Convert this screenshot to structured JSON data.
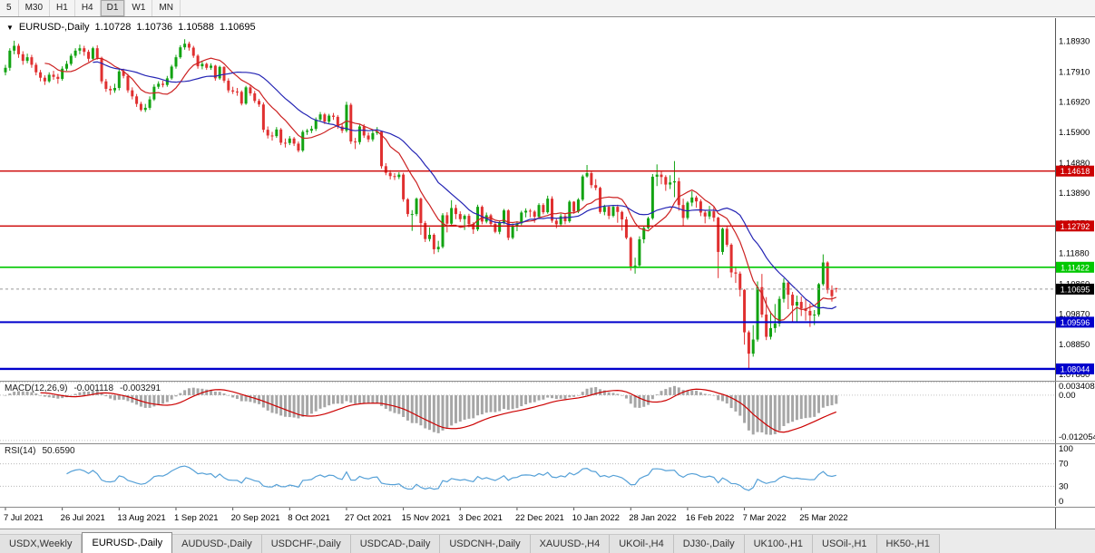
{
  "colors": {
    "bull": "#12a312",
    "bear": "#e03030",
    "ma_fast": "#cc2222",
    "ma_slow": "#2424b4",
    "macd_hist": "#a6a6a6",
    "macd_signal": "#cc0000",
    "rsi_line": "#55a0d7",
    "axis_text": "#000000",
    "hline_red": "#cc0000",
    "hline_green": "#00c800",
    "hline_blue": "#0000cc",
    "current_badge": "#000000"
  },
  "toolbar": {
    "timeframes": [
      "5",
      "M30",
      "H1",
      "H4",
      "D1",
      "W1",
      "MN"
    ],
    "active": "D1"
  },
  "legend": {
    "icon": "▼",
    "symbol": "EURUSD-,Daily",
    "open": "1.10728",
    "high": "1.10736",
    "low": "1.10588",
    "close": "1.10695"
  },
  "macd_label": {
    "name": "MACD(12,26,9)",
    "value_main": "-0.001118",
    "value_signal": "-0.003291"
  },
  "rsi_label": {
    "name": "RSI(14)",
    "value": "50.6590"
  },
  "tabs": {
    "active_index": 1,
    "items": [
      "USDX,Weekly",
      "EURUSD-,Daily",
      "AUDUSD-,Daily",
      "USDCHF-,Daily",
      "USDCAD-,Daily",
      "USDCNH-,Daily",
      "XAUUSD-,H4",
      "UKOil-,H4",
      "DJ30-,Daily",
      "UK100-,H1",
      "USOil-,H1",
      "HK50-,H1"
    ]
  },
  "chart_data": {
    "type": "candlestick",
    "title": "EURUSD-,Daily",
    "layout": {
      "x0": 6,
      "dx": 4.82,
      "axis_x": 1163,
      "grid": false,
      "legend_position": "top-left"
    },
    "price_range": {
      "top": 1.197,
      "bottom": 1.0765
    },
    "y_ticks": [
      "1.18930",
      "1.17910",
      "1.16920",
      "1.15900",
      "1.14880",
      "1.13890",
      "1.12870",
      "1.11880",
      "1.10860",
      "1.09870",
      "1.08850",
      "1.07860"
    ],
    "x_labels": [
      "7 Jul 2021",
      "26 Jul 2021",
      "13 Aug 2021",
      "1 Sep 2021",
      "20 Sep 2021",
      "8 Oct 2021",
      "27 Oct 2021",
      "15 Nov 2021",
      "3 Dec 2021",
      "22 Dec 2021",
      "10 Jan 2022",
      "28 Jan 2022",
      "16 Feb 2022",
      "7 Mar 2022",
      "25 Mar 2022"
    ],
    "x_label_indices": [
      0,
      13,
      26,
      39,
      52,
      65,
      78,
      91,
      104,
      117,
      130,
      143,
      156,
      169,
      182
    ],
    "hlines": [
      {
        "price": 1.14618,
        "label": "1.14618",
        "color": "#cc0000",
        "width": 1.4
      },
      {
        "price": 1.12792,
        "label": "1.12792",
        "color": "#cc0000",
        "width": 1.4
      },
      {
        "price": 1.11422,
        "label": "1.11422",
        "color": "#00c800",
        "width": 1.6
      },
      {
        "price": 1.09596,
        "label": "1.09596",
        "color": "#0000cc",
        "width": 2
      },
      {
        "price": 1.08044,
        "label": "1.08044",
        "color": "#0000cc",
        "width": 2.4
      }
    ],
    "current_price": {
      "price": 1.10695,
      "label": "1.10695",
      "badge_color": "#000000"
    },
    "indicators": [
      {
        "name": "MACD",
        "label": "MACD(12,26,9)",
        "values": "-0.001118 -0.003291",
        "range": {
          "max": 0.0036,
          "min": -0.0128
        },
        "axis_labels": [
          {
            "text": "0.003408",
            "value": 0.003408
          },
          {
            "text": "0.00",
            "value": 0
          },
          {
            "text": "-0.012054",
            "value": -0.012054
          }
        ]
      },
      {
        "name": "RSI",
        "label": "RSI(14)",
        "value": "50.6590",
        "axis_labels": [
          {
            "text": "100",
            "value": 100,
            "dotted": false
          },
          {
            "text": "70",
            "value": 70,
            "dotted": true
          },
          {
            "text": "30",
            "value": 30,
            "dotted": true
          },
          {
            "text": "0",
            "value": 0,
            "dotted": false
          }
        ]
      }
    ],
    "candles": [
      [
        1.179,
        1.1815,
        1.178,
        1.1805
      ],
      [
        1.1805,
        1.187,
        1.1795,
        1.1862
      ],
      [
        1.1862,
        1.1895,
        1.185,
        1.1878
      ],
      [
        1.1878,
        1.1885,
        1.1838,
        1.185
      ],
      [
        1.185,
        1.186,
        1.1815,
        1.1828
      ],
      [
        1.1828,
        1.1852,
        1.182,
        1.184
      ],
      [
        1.184,
        1.1848,
        1.1805,
        1.1815
      ],
      [
        1.1815,
        1.1822,
        1.178,
        1.179
      ],
      [
        1.179,
        1.1798,
        1.176,
        1.1772
      ],
      [
        1.1772,
        1.178,
        1.1748,
        1.176
      ],
      [
        1.176,
        1.179,
        1.1755,
        1.1782
      ],
      [
        1.1782,
        1.1795,
        1.1765,
        1.1775
      ],
      [
        1.1775,
        1.1785,
        1.1752,
        1.1768
      ],
      [
        1.1768,
        1.181,
        1.1762,
        1.1802
      ],
      [
        1.1802,
        1.1828,
        1.1795,
        1.1818
      ],
      [
        1.1818,
        1.1852,
        1.1812,
        1.1845
      ],
      [
        1.1845,
        1.187,
        1.1838,
        1.1862
      ],
      [
        1.1862,
        1.1882,
        1.185,
        1.187
      ],
      [
        1.187,
        1.1878,
        1.1845,
        1.1858
      ],
      [
        1.1858,
        1.1865,
        1.1825,
        1.1835
      ],
      [
        1.1835,
        1.1875,
        1.183,
        1.187
      ],
      [
        1.187,
        1.188,
        1.1832,
        1.1838
      ],
      [
        1.1838,
        1.1842,
        1.1752,
        1.176
      ],
      [
        1.176,
        1.1768,
        1.1725,
        1.1735
      ],
      [
        1.1735,
        1.1745,
        1.1715,
        1.173
      ],
      [
        1.173,
        1.1752,
        1.1722,
        1.1738
      ],
      [
        1.1738,
        1.18,
        1.173,
        1.1793
      ],
      [
        1.1793,
        1.1802,
        1.177,
        1.1778
      ],
      [
        1.1778,
        1.1785,
        1.1722,
        1.173
      ],
      [
        1.173,
        1.174,
        1.17,
        1.171
      ],
      [
        1.171,
        1.1718,
        1.1675,
        1.1685
      ],
      [
        1.1685,
        1.1692,
        1.166,
        1.1665
      ],
      [
        1.1665,
        1.1685,
        1.1658,
        1.1672
      ],
      [
        1.1672,
        1.171,
        1.1665,
        1.17
      ],
      [
        1.17,
        1.175,
        1.1695,
        1.1742
      ],
      [
        1.1742,
        1.176,
        1.1735,
        1.1752
      ],
      [
        1.1752,
        1.1762,
        1.174,
        1.1748
      ],
      [
        1.1748,
        1.1778,
        1.1742,
        1.177
      ],
      [
        1.177,
        1.1815,
        1.1765,
        1.1809
      ],
      [
        1.1809,
        1.1848,
        1.1802,
        1.184
      ],
      [
        1.184,
        1.188,
        1.1835,
        1.1873
      ],
      [
        1.1873,
        1.19,
        1.1865,
        1.1885
      ],
      [
        1.1885,
        1.1892,
        1.1862,
        1.1872
      ],
      [
        1.1872,
        1.1878,
        1.1838,
        1.1845
      ],
      [
        1.1845,
        1.185,
        1.1802,
        1.181
      ],
      [
        1.181,
        1.1828,
        1.18,
        1.1818
      ],
      [
        1.1818,
        1.1822,
        1.1798,
        1.1805
      ],
      [
        1.1805,
        1.182,
        1.1798,
        1.1812
      ],
      [
        1.1812,
        1.1815,
        1.1762,
        1.177
      ],
      [
        1.177,
        1.1812,
        1.1765,
        1.1808
      ],
      [
        1.1808,
        1.181,
        1.1755,
        1.1762
      ],
      [
        1.1762,
        1.177,
        1.1722,
        1.173
      ],
      [
        1.173,
        1.1742,
        1.1718,
        1.1726
      ],
      [
        1.1726,
        1.1738,
        1.1712,
        1.1725
      ],
      [
        1.1725,
        1.173,
        1.168,
        1.1686
      ],
      [
        1.1686,
        1.1745,
        1.1682,
        1.174
      ],
      [
        1.174,
        1.1748,
        1.1712,
        1.172
      ],
      [
        1.172,
        1.1728,
        1.1688,
        1.1695
      ],
      [
        1.1695,
        1.1702,
        1.1675,
        1.1683
      ],
      [
        1.1683,
        1.169,
        1.159,
        1.1599
      ],
      [
        1.1599,
        1.161,
        1.157,
        1.158
      ],
      [
        1.158,
        1.1592,
        1.1563,
        1.1578
      ],
      [
        1.1578,
        1.1608,
        1.1572,
        1.16
      ],
      [
        1.16,
        1.1605,
        1.1548,
        1.1556
      ],
      [
        1.1556,
        1.157,
        1.154,
        1.1555
      ],
      [
        1.1555,
        1.1578,
        1.1548,
        1.157
      ],
      [
        1.157,
        1.1575,
        1.1545,
        1.1553
      ],
      [
        1.1553,
        1.156,
        1.1524,
        1.153
      ],
      [
        1.153,
        1.1598,
        1.1525,
        1.1592
      ],
      [
        1.1592,
        1.1602,
        1.1582,
        1.1596
      ],
      [
        1.1596,
        1.1612,
        1.1588,
        1.1602
      ],
      [
        1.1602,
        1.164,
        1.1595,
        1.1633
      ],
      [
        1.1633,
        1.1658,
        1.1628,
        1.165
      ],
      [
        1.165,
        1.1655,
        1.1618,
        1.1626
      ],
      [
        1.1626,
        1.1652,
        1.162,
        1.1646
      ],
      [
        1.1646,
        1.1655,
        1.1632,
        1.1642
      ],
      [
        1.1642,
        1.1648,
        1.1602,
        1.161
      ],
      [
        1.161,
        1.162,
        1.1588,
        1.1596
      ],
      [
        1.1596,
        1.1692,
        1.159,
        1.1682
      ],
      [
        1.1682,
        1.1688,
        1.1552,
        1.156
      ],
      [
        1.156,
        1.1572,
        1.1535,
        1.1558
      ],
      [
        1.1558,
        1.1616,
        1.155,
        1.161
      ],
      [
        1.161,
        1.1618,
        1.1572,
        1.158
      ],
      [
        1.158,
        1.159,
        1.1558,
        1.1567
      ],
      [
        1.1567,
        1.1598,
        1.156,
        1.1588
      ],
      [
        1.1588,
        1.1608,
        1.1582,
        1.1593
      ],
      [
        1.1593,
        1.1595,
        1.147,
        1.1478
      ],
      [
        1.1478,
        1.1488,
        1.1448,
        1.1456
      ],
      [
        1.1456,
        1.1465,
        1.1434,
        1.1445
      ],
      [
        1.1445,
        1.1455,
        1.1432,
        1.1442
      ],
      [
        1.1442,
        1.1458,
        1.1435,
        1.145
      ],
      [
        1.145,
        1.1456,
        1.136,
        1.1368
      ],
      [
        1.1368,
        1.1372,
        1.131,
        1.1319
      ],
      [
        1.1319,
        1.1332,
        1.1263,
        1.1319
      ],
      [
        1.1319,
        1.1374,
        1.1312,
        1.137
      ],
      [
        1.137,
        1.1374,
        1.125,
        1.1289
      ],
      [
        1.1289,
        1.1296,
        1.1226,
        1.1236
      ],
      [
        1.1236,
        1.1275,
        1.1228,
        1.125
      ],
      [
        1.125,
        1.1255,
        1.1186,
        1.1202
      ],
      [
        1.1202,
        1.123,
        1.1192,
        1.121
      ],
      [
        1.121,
        1.1322,
        1.1205,
        1.1315
      ],
      [
        1.1315,
        1.1325,
        1.1258,
        1.1287
      ],
      [
        1.1287,
        1.1365,
        1.128,
        1.1339
      ],
      [
        1.1339,
        1.135,
        1.1302,
        1.1319
      ],
      [
        1.1319,
        1.1328,
        1.1293,
        1.1302
      ],
      [
        1.1302,
        1.1318,
        1.1266,
        1.1313
      ],
      [
        1.1313,
        1.132,
        1.1275,
        1.1286
      ],
      [
        1.1286,
        1.1292,
        1.1253,
        1.1268
      ],
      [
        1.1268,
        1.135,
        1.1262,
        1.1343
      ],
      [
        1.1343,
        1.1348,
        1.1285,
        1.1294
      ],
      [
        1.1294,
        1.1324,
        1.1288,
        1.1315
      ],
      [
        1.1315,
        1.132,
        1.128,
        1.1286
      ],
      [
        1.1286,
        1.1295,
        1.1255,
        1.126
      ],
      [
        1.126,
        1.1298,
        1.1252,
        1.1291
      ],
      [
        1.1291,
        1.1336,
        1.1285,
        1.1331
      ],
      [
        1.1331,
        1.1335,
        1.1232,
        1.124
      ],
      [
        1.124,
        1.1288,
        1.1235,
        1.128
      ],
      [
        1.128,
        1.1295,
        1.1262,
        1.1288
      ],
      [
        1.1288,
        1.133,
        1.1282,
        1.1324
      ],
      [
        1.1324,
        1.1338,
        1.1308,
        1.133
      ],
      [
        1.133,
        1.1336,
        1.1308,
        1.1327
      ],
      [
        1.1327,
        1.1332,
        1.129,
        1.131
      ],
      [
        1.131,
        1.1355,
        1.1304,
        1.1349
      ],
      [
        1.1349,
        1.1355,
        1.1318,
        1.1325
      ],
      [
        1.1325,
        1.138,
        1.132,
        1.137
      ],
      [
        1.137,
        1.1378,
        1.129,
        1.1297
      ],
      [
        1.1297,
        1.1305,
        1.1272,
        1.1285
      ],
      [
        1.1285,
        1.132,
        1.1278,
        1.1312
      ],
      [
        1.1312,
        1.1318,
        1.1285,
        1.1295
      ],
      [
        1.1295,
        1.1365,
        1.129,
        1.136
      ],
      [
        1.136,
        1.1362,
        1.132,
        1.1327
      ],
      [
        1.1327,
        1.1372,
        1.1322,
        1.1367
      ],
      [
        1.1367,
        1.145,
        1.1362,
        1.1444
      ],
      [
        1.1444,
        1.1482,
        1.144,
        1.1455
      ],
      [
        1.1455,
        1.146,
        1.1405,
        1.1415
      ],
      [
        1.1415,
        1.1435,
        1.1398,
        1.1406
      ],
      [
        1.1406,
        1.141,
        1.132,
        1.1326
      ],
      [
        1.1326,
        1.135,
        1.1315,
        1.1343
      ],
      [
        1.1343,
        1.1348,
        1.1302,
        1.1313
      ],
      [
        1.1313,
        1.1348,
        1.1308,
        1.1343
      ],
      [
        1.1343,
        1.135,
        1.129,
        1.1326
      ],
      [
        1.1326,
        1.133,
        1.1264,
        1.1301
      ],
      [
        1.1301,
        1.131,
        1.1235,
        1.124
      ],
      [
        1.124,
        1.1244,
        1.1131,
        1.1145
      ],
      [
        1.1145,
        1.1174,
        1.1121,
        1.1148
      ],
      [
        1.1148,
        1.1245,
        1.114,
        1.1235
      ],
      [
        1.1235,
        1.1279,
        1.1222,
        1.1273
      ],
      [
        1.1273,
        1.131,
        1.1268,
        1.1305
      ],
      [
        1.1305,
        1.1452,
        1.13,
        1.1443
      ],
      [
        1.1443,
        1.1484,
        1.1412,
        1.145
      ],
      [
        1.145,
        1.146,
        1.1418,
        1.1442
      ],
      [
        1.1442,
        1.1448,
        1.1396,
        1.1417
      ],
      [
        1.1417,
        1.1448,
        1.1402,
        1.1424
      ],
      [
        1.1424,
        1.1495,
        1.1375,
        1.1428
      ],
      [
        1.1428,
        1.144,
        1.133,
        1.1349
      ],
      [
        1.1349,
        1.137,
        1.128,
        1.1306
      ],
      [
        1.1306,
        1.1362,
        1.13,
        1.1357
      ],
      [
        1.1357,
        1.1395,
        1.1345,
        1.1374
      ],
      [
        1.1374,
        1.138,
        1.134,
        1.1361
      ],
      [
        1.1361,
        1.1368,
        1.1312,
        1.1324
      ],
      [
        1.1324,
        1.133,
        1.1288,
        1.1311
      ],
      [
        1.1311,
        1.1346,
        1.1302,
        1.1328
      ],
      [
        1.1328,
        1.1342,
        1.1294,
        1.1307
      ],
      [
        1.1307,
        1.131,
        1.1106,
        1.1193
      ],
      [
        1.1193,
        1.1274,
        1.1184,
        1.127
      ],
      [
        1.127,
        1.1278,
        1.121,
        1.1217
      ],
      [
        1.1217,
        1.1222,
        1.1108,
        1.1125
      ],
      [
        1.1125,
        1.1145,
        1.109,
        1.1121
      ],
      [
        1.1121,
        1.1128,
        1.1045,
        1.1067
      ],
      [
        1.1067,
        1.107,
        1.0885,
        1.0926
      ],
      [
        1.0926,
        1.0932,
        1.0806,
        1.0855
      ],
      [
        1.0855,
        1.095,
        1.0845,
        1.0902
      ],
      [
        1.0902,
        1.1095,
        1.0895,
        1.1076
      ],
      [
        1.1076,
        1.112,
        1.0975,
        1.0985
      ],
      [
        1.0985,
        1.1043,
        1.09,
        1.0911
      ],
      [
        1.0911,
        1.0995,
        1.0902,
        1.094
      ],
      [
        1.094,
        1.102,
        1.0925,
        1.0955
      ],
      [
        1.0955,
        1.1046,
        1.0945,
        1.1037
      ],
      [
        1.1037,
        1.1105,
        1.1025,
        1.1091
      ],
      [
        1.1091,
        1.1098,
        1.1003,
        1.1051
      ],
      [
        1.1051,
        1.106,
        1.096,
        1.1015
      ],
      [
        1.1015,
        1.1048,
        1.0962,
        1.1027
      ],
      [
        1.1027,
        1.1045,
        1.098,
        1.1005
      ],
      [
        1.1005,
        1.1035,
        1.0965,
        1.0997
      ],
      [
        1.0997,
        1.1022,
        1.0944,
        1.0982
      ],
      [
        1.0982,
        1.1,
        1.095,
        1.0985
      ],
      [
        1.0985,
        1.109,
        1.0978,
        1.1086
      ],
      [
        1.1086,
        1.1185,
        1.108,
        1.1158
      ],
      [
        1.1158,
        1.1162,
        1.1055,
        1.1067
      ],
      [
        1.1067,
        1.1082,
        1.1028,
        1.1046
      ],
      [
        1.10728,
        1.10736,
        1.10588,
        1.10695
      ]
    ]
  }
}
